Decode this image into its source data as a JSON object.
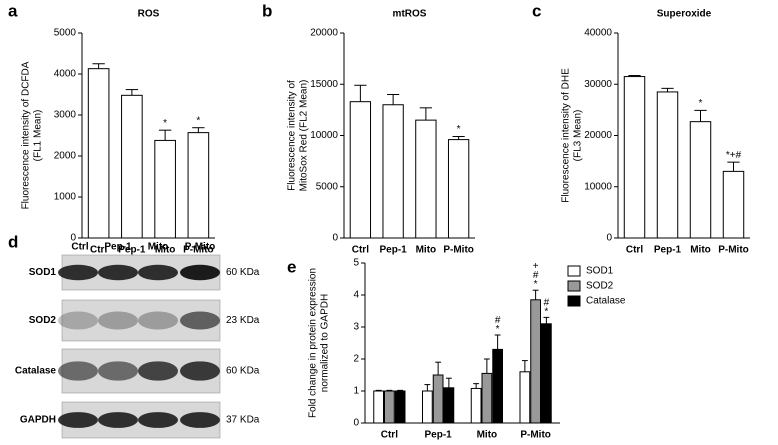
{
  "chart_data": [
    {
      "type": "bar",
      "panel_label": "a",
      "title": "ROS",
      "y_label": [
        "Fluorescence intensity of DCFDA",
        "(FL1 Mean)"
      ],
      "categories": [
        "Ctrl",
        "Pep-1",
        "Mito",
        "P-Mito"
      ],
      "values": [
        4130,
        3480,
        2380,
        2570
      ],
      "errors": [
        120,
        140,
        250,
        120
      ],
      "annotations": [
        null,
        null,
        "*",
        "*"
      ],
      "color": "#ffffff",
      "ylim": [
        0,
        5000
      ],
      "yticks": [
        0,
        1000,
        2000,
        3000,
        4000,
        5000
      ]
    },
    {
      "type": "bar",
      "panel_label": "b",
      "title": "mtROS",
      "y_label": [
        "Fluorescence intensity of",
        "MitoSox Red (FL2 Mean)"
      ],
      "categories": [
        "Ctrl",
        "Pep-1",
        "Mito",
        "P-Mito"
      ],
      "values": [
        13300,
        13000,
        11500,
        9600
      ],
      "errors": [
        1600,
        1000,
        1200,
        300
      ],
      "annotations": [
        null,
        null,
        null,
        "*"
      ],
      "color": "#ffffff",
      "ylim": [
        0,
        20000
      ],
      "yticks": [
        0,
        5000,
        10000,
        15000,
        20000
      ]
    },
    {
      "type": "bar",
      "panel_label": "c",
      "title": "Superoxide",
      "y_label": [
        "Fluorescence intensity of DHE",
        "(FL3 Mean)"
      ],
      "categories": [
        "Ctrl",
        "Pep-1",
        "Mito",
        "P-Mito"
      ],
      "values": [
        31500,
        28500,
        22700,
        13000
      ],
      "errors": [
        200,
        700,
        2200,
        1800
      ],
      "annotations": [
        null,
        null,
        "*",
        "*+#"
      ],
      "color": "#ffffff",
      "ylim": [
        0,
        40000
      ],
      "yticks": [
        0,
        10000,
        20000,
        30000,
        40000
      ]
    },
    {
      "type": "blot",
      "panel_label": "d",
      "columns": [
        "Ctrl",
        "Pep-1",
        "Mito",
        "P-Mito"
      ],
      "rows": [
        {
          "name": "SOD1",
          "size": "60 KDa"
        },
        {
          "name": "SOD2",
          "size": "23 KDa"
        },
        {
          "name": "Catalase",
          "size": "60 KDa"
        },
        {
          "name": "GAPDH",
          "size": "37 KDa"
        }
      ]
    },
    {
      "type": "grouped_bar",
      "panel_label": "e",
      "y_label": [
        "Fold change in protein expression",
        "normalized to GAPDH"
      ],
      "categories": [
        "Ctrl",
        "Pep-1",
        "Mito",
        "P-Mito"
      ],
      "series": [
        {
          "name": "SOD1",
          "color": "#ffffff",
          "values": [
            1,
            1.0,
            1.08,
            1.6
          ],
          "errors": [
            0.02,
            0.2,
            0.15,
            0.35
          ],
          "annotations": [
            null,
            null,
            null,
            null
          ]
        },
        {
          "name": "SOD2",
          "color": "#999999",
          "values": [
            1,
            1.5,
            1.55,
            3.85
          ],
          "errors": [
            0.02,
            0.4,
            0.45,
            0.3
          ],
          "annotations": [
            null,
            null,
            null,
            "+#*"
          ]
        },
        {
          "name": "Catalase",
          "color": "#000000",
          "values": [
            1,
            1.1,
            2.3,
            3.1
          ],
          "errors": [
            0.02,
            0.3,
            0.45,
            0.2
          ],
          "annotations": [
            null,
            null,
            "#*",
            "#*"
          ]
        }
      ],
      "annotation_stack": true,
      "legend": "upper-right",
      "ylim": [
        0,
        5
      ],
      "yticks": [
        0,
        1,
        2,
        3,
        4,
        5
      ]
    }
  ]
}
